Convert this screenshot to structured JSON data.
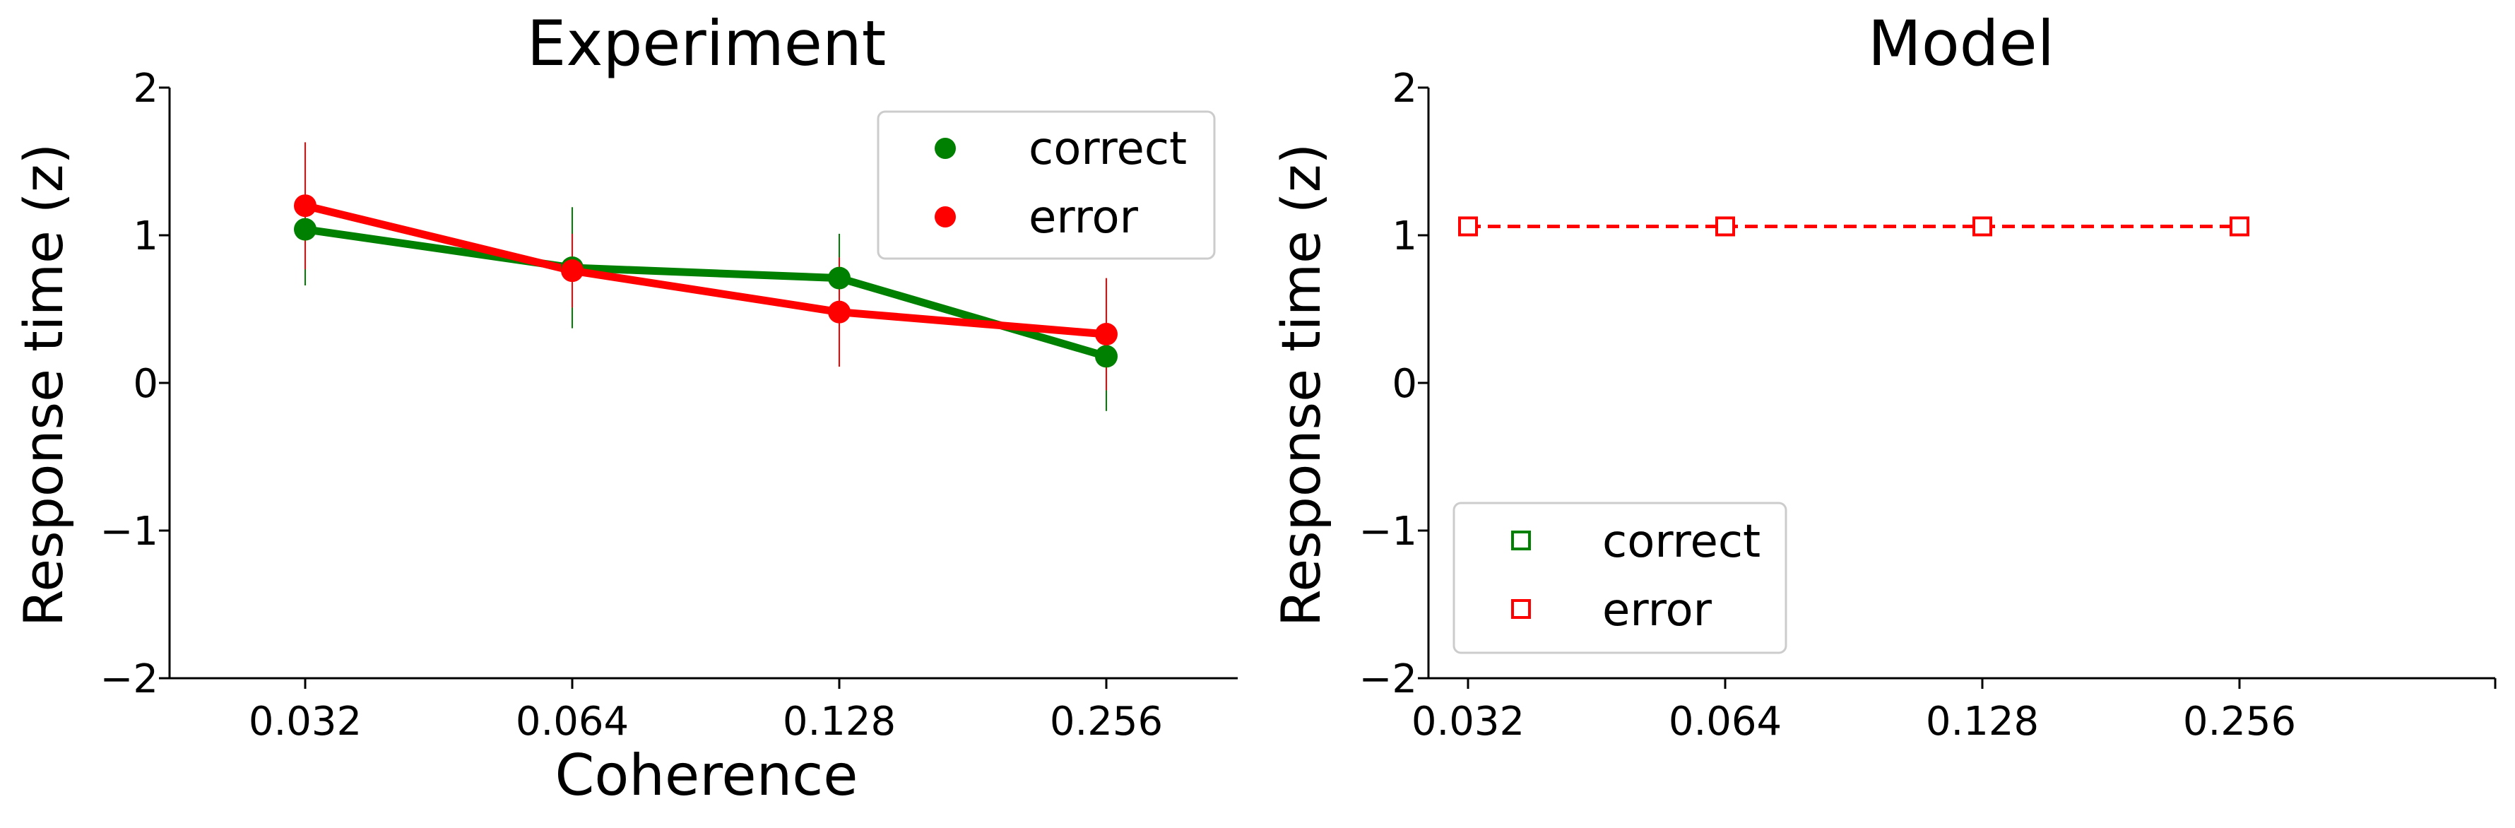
{
  "chart_data": [
    {
      "type": "line",
      "title": "Experiment",
      "xlabel": "Coherence",
      "ylabel": "Response time (z)",
      "x_scale": "log",
      "categories": [
        "0.032",
        "0.064",
        "0.128",
        "0.256"
      ],
      "x": [
        0.032,
        0.064,
        0.128,
        0.256
      ],
      "ylim": [
        -2,
        2
      ],
      "yticks": [
        "2",
        "1",
        "0",
        "−1",
        "−2"
      ],
      "legend_position": "upper right",
      "series": [
        {
          "name": "correct",
          "color": "#008000",
          "marker": "filled-circle",
          "values": [
            1.04,
            0.78,
            0.71,
            0.18
          ],
          "error": [
            0.38,
            0.41,
            0.3,
            0.37
          ]
        },
        {
          "name": "error",
          "color": "#ff0000",
          "marker": "filled-circle",
          "values": [
            1.2,
            0.76,
            0.48,
            0.33
          ],
          "error": [
            0.43,
            0.25,
            0.37,
            0.38
          ]
        }
      ]
    },
    {
      "type": "line",
      "title": "Model",
      "xlabel": "",
      "ylabel": "Response time (z)",
      "x_scale": "log",
      "categories": [
        "0.032",
        "0.064",
        "0.128",
        "0.256"
      ],
      "x": [
        0.032,
        0.064,
        0.128,
        0.256
      ],
      "ylim": [
        -2,
        2
      ],
      "yticks": [
        "2",
        "1",
        "0",
        "−1",
        "−2"
      ],
      "legend_position": "lower left",
      "series": [
        {
          "name": "correct",
          "color": "#008000",
          "marker": "open-square",
          "linestyle": "dashed",
          "values": [
            1.06,
            1.06,
            1.06,
            1.06
          ]
        },
        {
          "name": "error",
          "color": "#ff0000",
          "marker": "open-square",
          "linestyle": "dashed",
          "values": [
            1.06,
            1.06,
            1.06,
            1.06
          ]
        }
      ]
    }
  ]
}
